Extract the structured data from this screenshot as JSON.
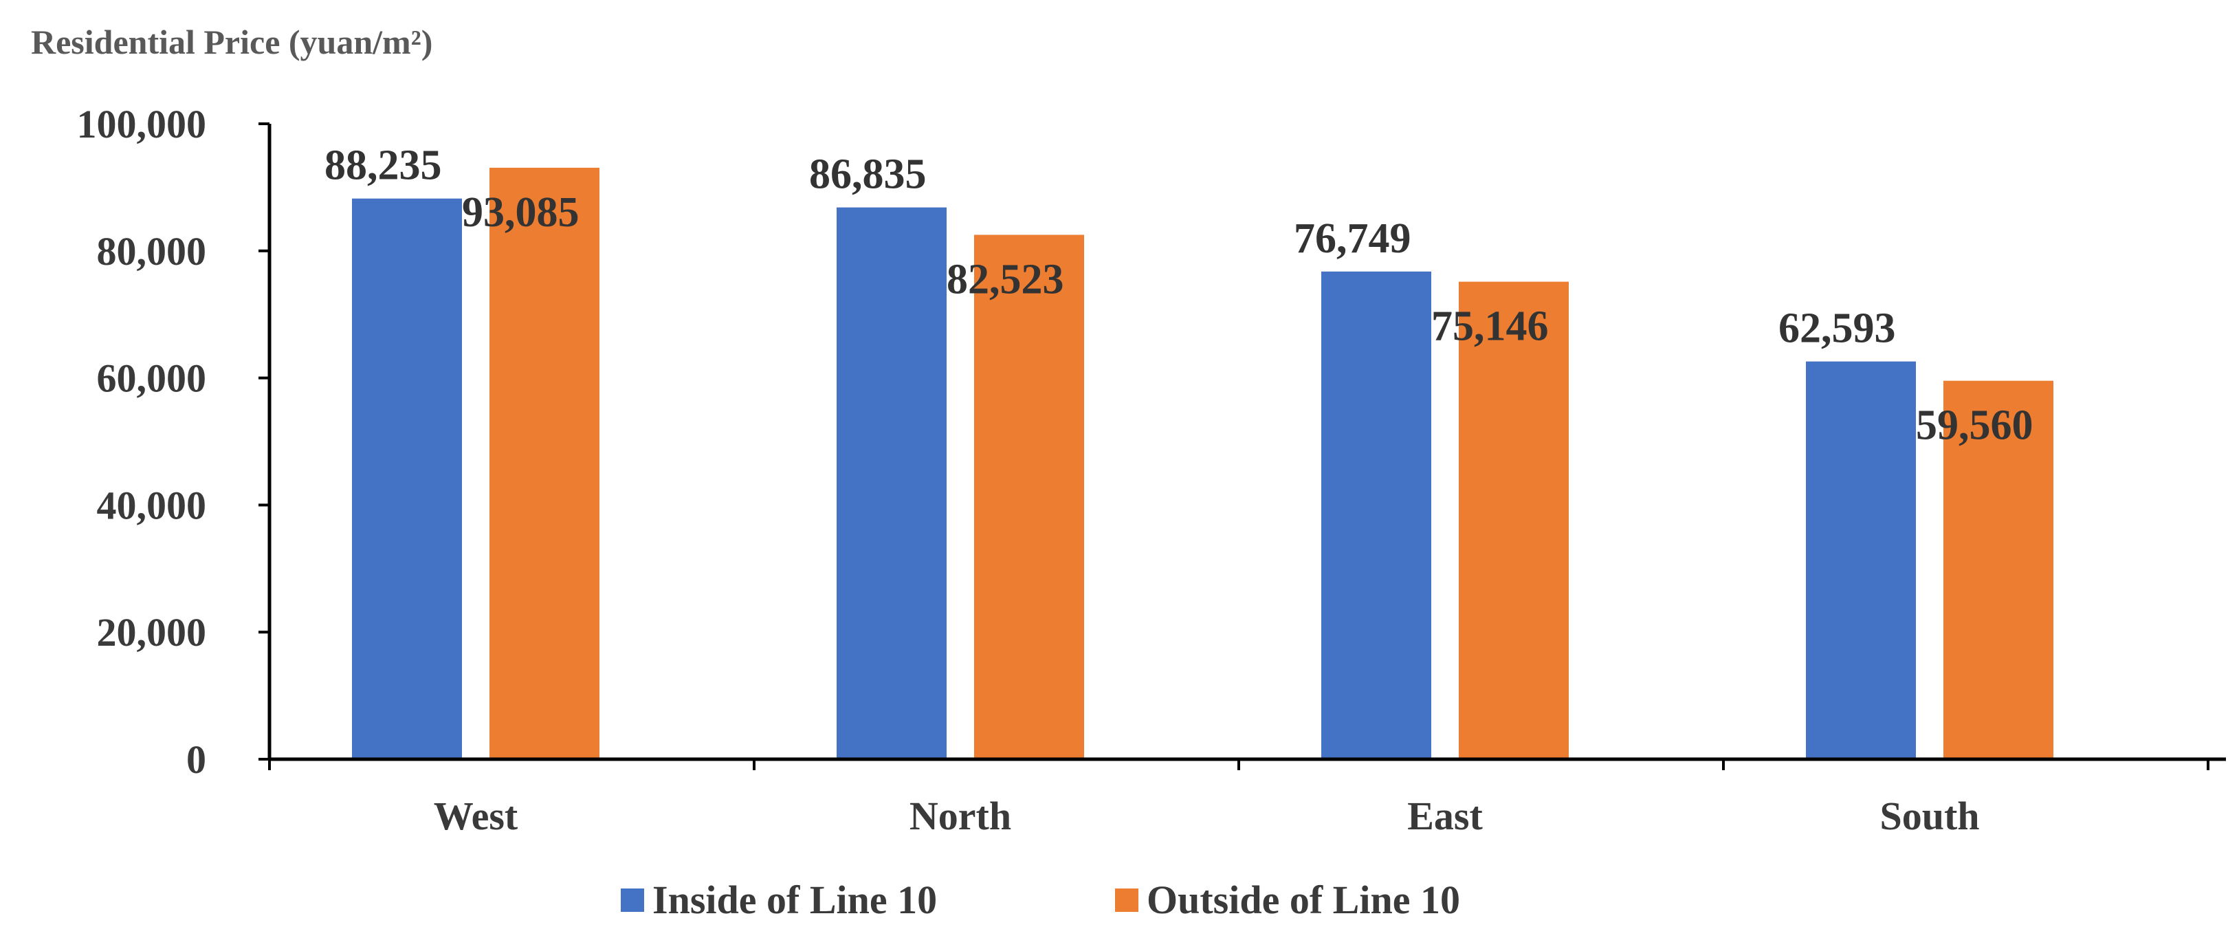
{
  "chart_data": {
    "type": "bar",
    "ylabel": "Residential Price (yuan/m²)",
    "categories": [
      "West",
      "North",
      "East",
      "South"
    ],
    "series": [
      {
        "name": "Inside of Line 10",
        "values": [
          88235,
          86835,
          76749,
          62593
        ],
        "labels": [
          "88,235",
          "86,835",
          "76,749",
          "62,593"
        ],
        "color": "#4472C4"
      },
      {
        "name": "Outside of Line 10",
        "values": [
          93085,
          82523,
          75146,
          59560
        ],
        "labels": [
          "93,085",
          "82,523",
          "75,146",
          "59,560"
        ],
        "color": "#ED7D31"
      }
    ],
    "ylim": [
      0,
      100000
    ],
    "yticks": [
      0,
      20000,
      40000,
      60000,
      80000,
      100000
    ],
    "ytick_labels": [
      "0",
      "20,000",
      "40,000",
      "60,000",
      "80,000",
      "100,000"
    ],
    "grid": false,
    "legend": "bottom"
  }
}
